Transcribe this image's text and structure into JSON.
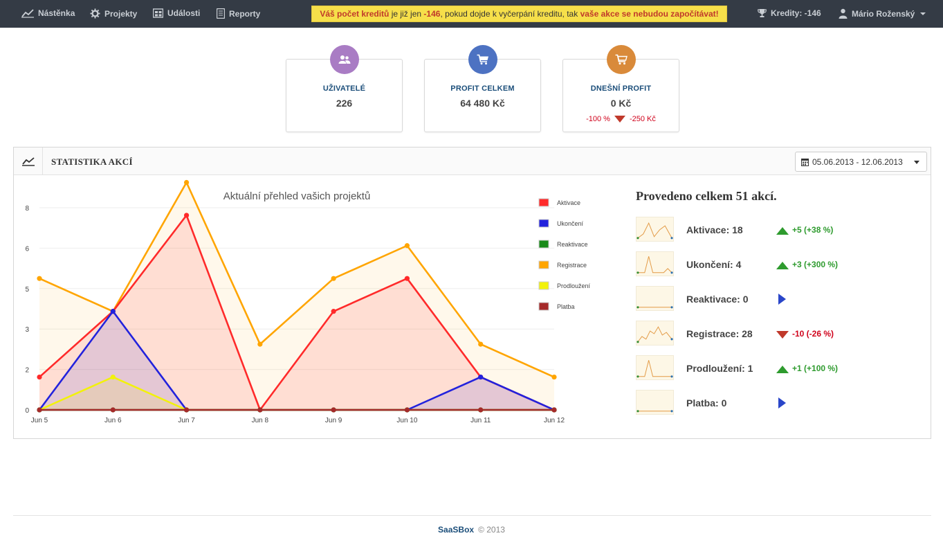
{
  "nav": {
    "items": [
      {
        "label": "Nástěnka",
        "icon": "chart-line-icon"
      },
      {
        "label": "Projekty",
        "icon": "gear-icon"
      },
      {
        "label": "Události",
        "icon": "events-icon"
      },
      {
        "label": "Reporty",
        "icon": "report-icon"
      }
    ],
    "alert": {
      "part1": "Váš počet kreditů",
      "part2": " je již jen ",
      "part3": "-146",
      "part4": ", pokud dojde k vyčerpání kreditu, tak ",
      "part5": "vaše akce se nebudou započítávat!"
    },
    "credits": "Kredity: -146",
    "user": "Mário Roženský"
  },
  "stats": [
    {
      "label": "UŽIVATELÉ",
      "value": "226",
      "icon": "users-icon",
      "color": "#a97cc4"
    },
    {
      "label": "PROFIT CELKEM",
      "value": "64 480 Kč",
      "icon": "cart-icon",
      "color": "#4d72c2"
    },
    {
      "label": "DNEŠNÍ PROFIT",
      "value": "0 Kč",
      "icon": "cart-icon",
      "color": "#d98a3a",
      "delta_pct": "-100 %",
      "delta_abs": "-250 Kč"
    }
  ],
  "panel": {
    "title": "STATISTIKA AKCÍ",
    "date_range": "05.06.2013 - 12.06.2013"
  },
  "chart_data": {
    "type": "area",
    "title": "Aktuální přehled vašich projektů",
    "categories": [
      "Jun 5",
      "Jun 6",
      "Jun 7",
      "Jun 8",
      "Jun 9",
      "Jun 10",
      "Jun 11",
      "Jun 12"
    ],
    "y_tick_labels": [
      "0",
      "2",
      "3",
      "5",
      "6",
      "8"
    ],
    "ylim": [
      0,
      8
    ],
    "legend_position": "right",
    "series": [
      {
        "name": "Aktivace",
        "color": "#ff2a2a",
        "values": [
          1.3,
          3.9,
          7.7,
          0,
          3.9,
          5.2,
          1.3,
          0
        ]
      },
      {
        "name": "Ukončení",
        "color": "#2222dd",
        "values": [
          0,
          3.9,
          0,
          0,
          0,
          0,
          1.3,
          0
        ]
      },
      {
        "name": "Reaktivace",
        "color": "#1a8a1a",
        "values": [
          0,
          0,
          0,
          0,
          0,
          0,
          0,
          0
        ]
      },
      {
        "name": "Registrace",
        "color": "#ffa500",
        "values": [
          5.2,
          3.9,
          9.0,
          2.6,
          5.2,
          6.5,
          2.6,
          1.3
        ]
      },
      {
        "name": "Prodloužení",
        "color": "#f2f20a",
        "values": [
          0,
          1.3,
          0,
          0,
          0,
          0,
          0,
          0
        ]
      },
      {
        "name": "Platba",
        "color": "#a52a2a",
        "values": [
          0,
          0,
          0,
          0,
          0,
          0,
          0,
          0
        ]
      }
    ]
  },
  "summary": {
    "title": "Provedeno celkem 51 akcí.",
    "rows": [
      {
        "label": "Aktivace: 18",
        "delta": "+5 (+38 %)",
        "trend": "up"
      },
      {
        "label": "Ukončení: 4",
        "delta": "+3 (+300 %)",
        "trend": "up"
      },
      {
        "label": "Reaktivace: 0",
        "delta": "",
        "trend": "flat"
      },
      {
        "label": "Registrace: 28",
        "delta": "-10 (-26 %)",
        "trend": "down"
      },
      {
        "label": "Prodloužení: 1",
        "delta": "+1 (+100 %)",
        "trend": "up"
      },
      {
        "label": "Platba: 0",
        "delta": "",
        "trend": "flat"
      }
    ]
  },
  "footer": {
    "brand": "SaaSBox",
    "copyright": "© 2013"
  }
}
